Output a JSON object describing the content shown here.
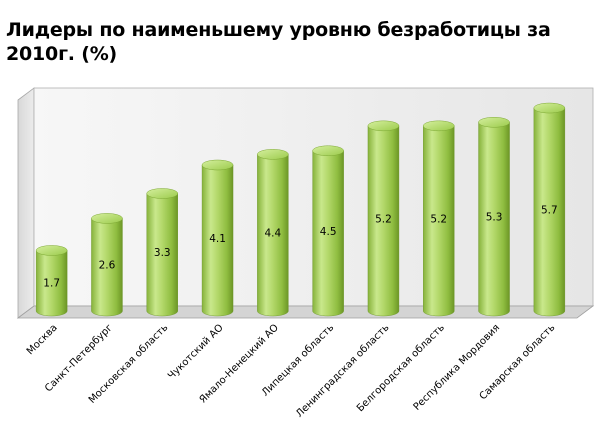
{
  "title": "Лидеры по наименьшему уровню безработицы за 2010г. (%)",
  "chart_data": {
    "type": "bar",
    "style": "3d-cylinder",
    "title": "Лидеры по наименьшему уровню безработицы за 2010г. (%)",
    "xlabel": "",
    "ylabel": "",
    "categories": [
      "Москва",
      "Санкт-Петербург",
      "Московская область",
      "Чукотский АО",
      "Ямало-Ненецкий АО",
      "Липецкая область",
      "Ленинградская область",
      "Белгородская область",
      "Республика Мордовия",
      "Самарская область"
    ],
    "values": [
      1.7,
      2.6,
      3.3,
      4.1,
      4.4,
      4.5,
      5.2,
      5.2,
      5.3,
      5.7
    ],
    "value_labels": [
      "1.7",
      "2.6",
      "3.3",
      "4.1",
      "4.4",
      "4.5",
      "5.2",
      "5.2",
      "5.3",
      "5.7"
    ],
    "ylim": [
      0,
      6
    ],
    "grid": false,
    "legend": "none",
    "colors": {
      "bar_light": "#c9e68a",
      "bar_mid": "#9cc94a",
      "bar_dark": "#6f9a2a",
      "bar_top": "#b6dc6a",
      "wall": "#ececec",
      "floor": "#d6d6d6",
      "frame": "#9a9a9a"
    }
  }
}
